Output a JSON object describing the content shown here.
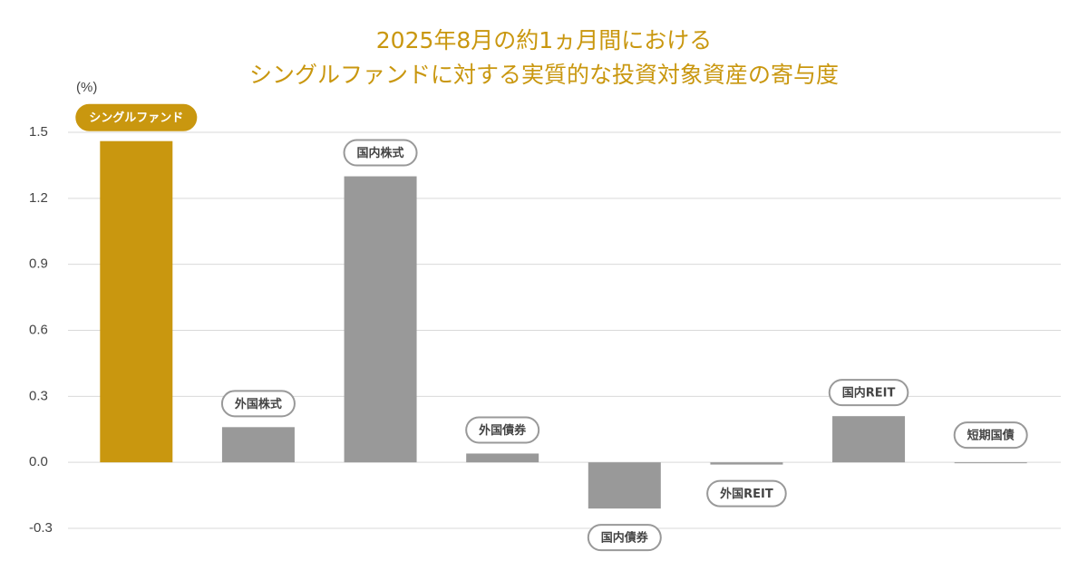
{
  "chart_data": {
    "type": "bar",
    "title": [
      "2025年8月の約1ヵ月間における",
      "シングルファンドに対する実質的な投資対象資産の寄与度"
    ],
    "ylabel": "(%)",
    "categories": [
      "シングルファンド",
      "外国株式",
      "国内株式",
      "外国債券",
      "国内債券",
      "外国REIT",
      "国内REIT",
      "短期国債"
    ],
    "values": [
      1.46,
      0.16,
      1.3,
      0.04,
      -0.21,
      -0.01,
      0.21,
      0.0
    ],
    "colors": [
      "#c9970f",
      "#999999",
      "#999999",
      "#999999",
      "#999999",
      "#999999",
      "#999999",
      "#999999"
    ],
    "ylim": [
      -0.3,
      1.5
    ],
    "yticks": [
      -0.3,
      {
        "value": 0,
        "label": "0.0"
      },
      0.3,
      0.6,
      0.9,
      1.2,
      1.5
    ],
    "grid": true
  }
}
